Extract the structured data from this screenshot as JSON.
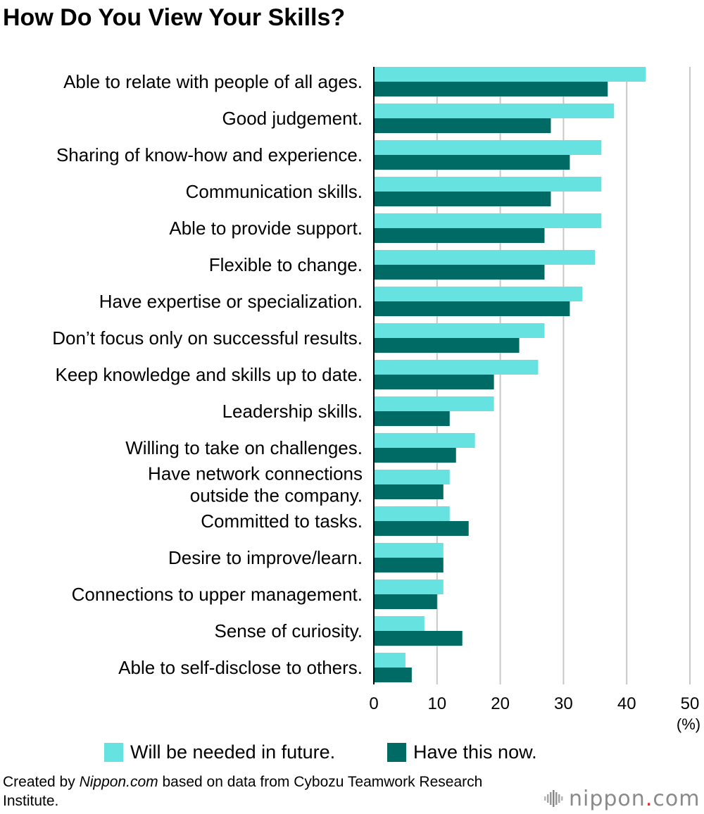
{
  "page": {
    "title": "How Do You View Your Skills?",
    "source_prefix": "Created by ",
    "source_brand": "Nippon.com",
    "source_suffix": " based on data from Cybozu Teamwork Research Institute.",
    "logo": {
      "name": "nippon",
      "dot": ".",
      "tld": "com",
      "icon": "nippon-logo-icon"
    }
  },
  "colors": {
    "future": "#66E3E1",
    "now": "#006A64",
    "grid": "#c8c8c8",
    "axis": "#000000"
  },
  "chart_data": {
    "type": "bar",
    "orientation": "horizontal",
    "title": "How Do You View Your Skills?",
    "categories": [
      "Able to relate with people of all ages.",
      "Good judgement.",
      "Sharing of know-how and experience.",
      "Communication skills.",
      "Able to provide support.",
      "Flexible to change.",
      "Have expertise or specialization.",
      "Don’t focus only on successful results.",
      "Keep knowledge and skills up to date.",
      "Leadership skills.",
      "Willing to take on challenges.",
      "Have network connections outside the company.",
      "Committed to tasks.",
      "Desire to improve/learn.",
      "Connections to upper management.",
      "Sense of curiosity.",
      "Able to self-disclose to others."
    ],
    "category_lines": [
      [
        "Able to relate with people of all ages."
      ],
      [
        "Good judgement."
      ],
      [
        "Sharing of know-how and experience."
      ],
      [
        "Communication skills."
      ],
      [
        "Able to provide support."
      ],
      [
        "Flexible to change."
      ],
      [
        "Have expertise or specialization."
      ],
      [
        "Don’t focus only on successful results."
      ],
      [
        "Keep knowledge and skills up to date."
      ],
      [
        "Leadership skills."
      ],
      [
        "Willing to take on challenges."
      ],
      [
        "Have network connections",
        "outside the company."
      ],
      [
        "Committed to tasks."
      ],
      [
        "Desire to improve/learn."
      ],
      [
        "Connections to upper management."
      ],
      [
        "Sense of curiosity."
      ],
      [
        "Able to self-disclose to others."
      ]
    ],
    "series": [
      {
        "name": "Will be needed in future.",
        "color": "#66E3E1",
        "values": [
          43,
          38,
          36,
          36,
          36,
          35,
          33,
          27,
          26,
          19,
          16,
          12,
          12,
          11,
          11,
          8,
          5
        ]
      },
      {
        "name": "Have this now.",
        "color": "#006A64",
        "values": [
          37,
          28,
          31,
          28,
          27,
          27,
          31,
          23,
          19,
          12,
          13,
          11,
          15,
          11,
          10,
          14,
          6
        ]
      }
    ],
    "xlim": [
      0,
      50
    ],
    "xticks": [
      0,
      10,
      20,
      30,
      40,
      50
    ],
    "xunit": "(%)",
    "grid": true,
    "legend_position": "bottom"
  }
}
